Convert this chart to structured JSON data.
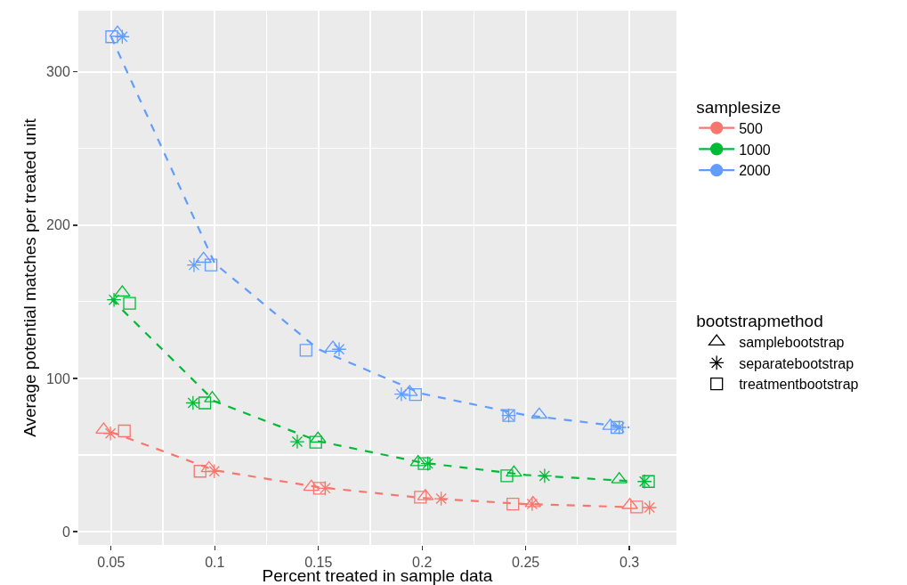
{
  "chart_data": {
    "type": "scatter",
    "xlabel": "Percent treated in sample data",
    "ylabel": "Average potential matches per treated unit",
    "legend_title": [
      "samplesize",
      "bootstrapmethod"
    ],
    "legend": "right",
    "grid": true,
    "xlim": [
      0.0342,
      0.3227
    ],
    "xticks": [
      0.05,
      0.1,
      0.15,
      0.2,
      0.25,
      0.3
    ],
    "ylim": [
      -8.7,
      340
    ],
    "yticks": [
      0,
      100,
      200,
      300
    ],
    "series": [
      {
        "name": "500",
        "color": "#f8766d",
        "marker": "circle",
        "line_style": "solid"
      },
      {
        "name": "1000",
        "color": "#00ba38",
        "marker": "circle",
        "line_style": "solid"
      },
      {
        "name": "2000",
        "color": "#619cff",
        "marker": "circle",
        "line_style": "solid"
      },
      {
        "name": "samplebootstrap",
        "color": "#000000",
        "marker": "triangle"
      },
      {
        "name": "separatebootstrap",
        "color": "#000000",
        "marker": "cross"
      },
      {
        "name": "treatmentbootstrap",
        "color": "#000000",
        "marker": "square"
      },
      {
        "type": "line",
        "color": "#f8766d",
        "line_style": "dashed",
        "marker": "none",
        "x": [
          0.05,
          0.1,
          0.15,
          0.2,
          0.25,
          0.3
        ],
        "values": [
          65,
          40,
          29,
          22,
          18,
          16
        ]
      },
      {
        "type": "line",
        "color": "#00ba38",
        "line_style": "dashed",
        "marker": "none",
        "x": [
          0.05,
          0.1,
          0.15,
          0.2,
          0.25,
          0.3
        ],
        "values": [
          152,
          85,
          59,
          45,
          37,
          33
        ]
      },
      {
        "type": "line",
        "color": "#619cff",
        "line_style": "dashed",
        "marker": "none",
        "x": [
          0.05,
          0.1,
          0.15,
          0.2,
          0.25,
          0.3
        ],
        "values": [
          323,
          175,
          119,
          90,
          76,
          68
        ]
      },
      {
        "color": "#f8766d",
        "marker": "triangle",
        "x": [
          0.0464,
          0.0972,
          0.1466,
          0.2016,
          0.2535,
          0.3002
        ],
        "values": [
          66.5,
          41.3,
          29.2,
          23.1,
          18.6,
          17.3
        ]
      },
      {
        "color": "#f8766d",
        "marker": "cross",
        "x": [
          0.0497,
          0.0998,
          0.1533,
          0.2092,
          0.2531,
          0.3097
        ],
        "values": [
          64.1,
          39.4,
          28.3,
          21.5,
          18,
          15.7
        ]
      },
      {
        "color": "#f8766d",
        "marker": "square",
        "x": [
          0.0564,
          0.0929,
          0.1505,
          0.1992,
          0.2438,
          0.3035
        ],
        "values": [
          65.7,
          39.4,
          28.3,
          22.5,
          18,
          16.1
        ]
      },
      {
        "color": "#00ba38",
        "marker": "triangle",
        "x": [
          0.0554,
          0.0988,
          0.1498,
          0.1981,
          0.2443,
          0.2951
        ],
        "values": [
          156,
          87,
          60.6,
          45.3,
          38.5,
          34.1
        ]
      },
      {
        "color": "#00ba38",
        "marker": "cross",
        "x": [
          0.0514,
          0.0895,
          0.1398,
          0.2028,
          0.2591,
          0.3073
        ],
        "values": [
          151.3,
          84,
          58.7,
          44.4,
          36.4,
          32.7
        ]
      },
      {
        "color": "#00ba38",
        "marker": "square",
        "x": [
          0.0589,
          0.0952,
          0.1487,
          0.201,
          0.2409,
          0.3092
        ],
        "values": [
          149,
          84,
          58.3,
          44.4,
          36.4,
          32.7
        ]
      },
      {
        "color": "#619cff",
        "marker": "triangle",
        "x": [
          0.0531,
          0.0946,
          0.157,
          0.194,
          0.2565,
          0.2908
        ],
        "values": [
          325.6,
          178,
          120,
          91,
          76.3,
          69
        ]
      },
      {
        "color": "#619cff",
        "marker": "cross",
        "x": [
          0.0554,
          0.09,
          0.16,
          0.19,
          0.2418,
          0.2951
        ],
        "values": [
          323,
          174,
          119,
          89.7,
          75.8,
          68
        ]
      },
      {
        "color": "#619cff",
        "marker": "square",
        "x": [
          0.0503,
          0.0982,
          0.144,
          0.1968,
          0.2418,
          0.294
        ],
        "values": [
          323,
          174,
          118.4,
          89.4,
          75.8,
          68
        ]
      }
    ]
  }
}
